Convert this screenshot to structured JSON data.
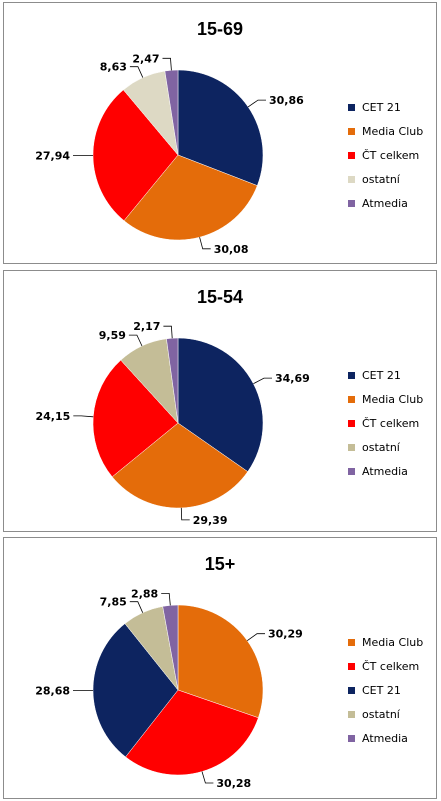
{
  "chart_data": [
    {
      "type": "pie",
      "title": "15-69",
      "slices": [
        {
          "label": "CET 21",
          "value": 30.86,
          "display": "30,86",
          "color": "#0d2460"
        },
        {
          "label": "Media Club",
          "value": 30.08,
          "display": "30,08",
          "color": "#e46c0a"
        },
        {
          "label": "ČT celkem",
          "value": 27.94,
          "display": "27,94",
          "color": "#ff0000"
        },
        {
          "label": "ostatní",
          "value": 8.63,
          "display": "8,63",
          "color": "#ddd9c4"
        },
        {
          "label": "Atmedia",
          "value": 2.47,
          "display": "2,47",
          "color": "#8064a2"
        }
      ],
      "legend_position": "right"
    },
    {
      "type": "pie",
      "title": "15-54",
      "slices": [
        {
          "label": "CET 21",
          "value": 34.69,
          "display": "34,69",
          "color": "#0d2460"
        },
        {
          "label": "Media Club",
          "value": 29.39,
          "display": "29,39",
          "color": "#e46c0a"
        },
        {
          "label": "ČT celkem",
          "value": 24.15,
          "display": "24,15",
          "color": "#ff0000"
        },
        {
          "label": "ostatní",
          "value": 9.59,
          "display": "9,59",
          "color": "#c4bd97"
        },
        {
          "label": "Atmedia",
          "value": 2.17,
          "display": "2,17",
          "color": "#8064a2"
        }
      ],
      "legend_position": "right"
    },
    {
      "type": "pie",
      "title": "15+",
      "slices": [
        {
          "label": "Media Club",
          "value": 30.29,
          "display": "30,29",
          "color": "#e46c0a"
        },
        {
          "label": "ČT celkem",
          "value": 30.28,
          "display": "30,28",
          "color": "#ff0000"
        },
        {
          "label": "CET 21",
          "value": 28.68,
          "display": "28,68",
          "color": "#0d2460"
        },
        {
          "label": "ostatní",
          "value": 7.85,
          "display": "7,85",
          "color": "#c4bd97"
        },
        {
          "label": "Atmedia",
          "value": 2.88,
          "display": "2,88",
          "color": "#8064a2"
        }
      ],
      "legend_position": "right"
    }
  ]
}
